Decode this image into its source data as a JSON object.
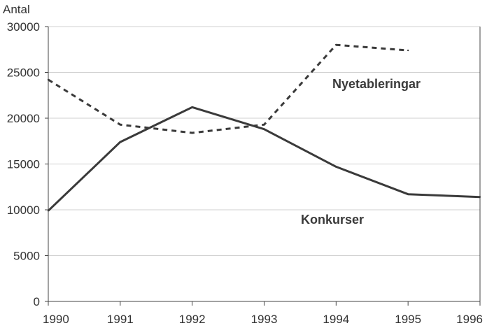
{
  "chart_data": {
    "type": "line",
    "ylabel": "Antal",
    "xlabel": "",
    "x": [
      "1990",
      "1991",
      "1992",
      "1993",
      "1994",
      "1995",
      "1996"
    ],
    "yticks": [
      "0",
      "5000",
      "10000",
      "15000",
      "20000",
      "25000",
      "30000"
    ],
    "ylim": [
      0,
      30000
    ],
    "grid": "horizontal",
    "legend": "none",
    "series": [
      {
        "name": "Nyetableringar",
        "style": "dashed",
        "color": "#3a3a3a",
        "points": [
          {
            "x": 1990,
            "y": 24200
          },
          {
            "x": 1991,
            "y": 19300
          },
          {
            "x": 1992,
            "y": 18400
          },
          {
            "x": 1993,
            "y": 19300
          },
          {
            "x": 1994,
            "y": 28000
          },
          {
            "x": 1995,
            "y": 27400
          }
        ]
      },
      {
        "name": "Konkurser",
        "style": "solid",
        "color": "#3a3a3a",
        "points": [
          {
            "x": 1990,
            "y": 9900
          },
          {
            "x": 1991,
            "y": 17400
          },
          {
            "x": 1992,
            "y": 21200
          },
          {
            "x": 1993,
            "y": 18800
          },
          {
            "x": 1994,
            "y": 14700
          },
          {
            "x": 1995,
            "y": 11700
          },
          {
            "x": 1996,
            "y": 11400
          }
        ]
      }
    ]
  }
}
